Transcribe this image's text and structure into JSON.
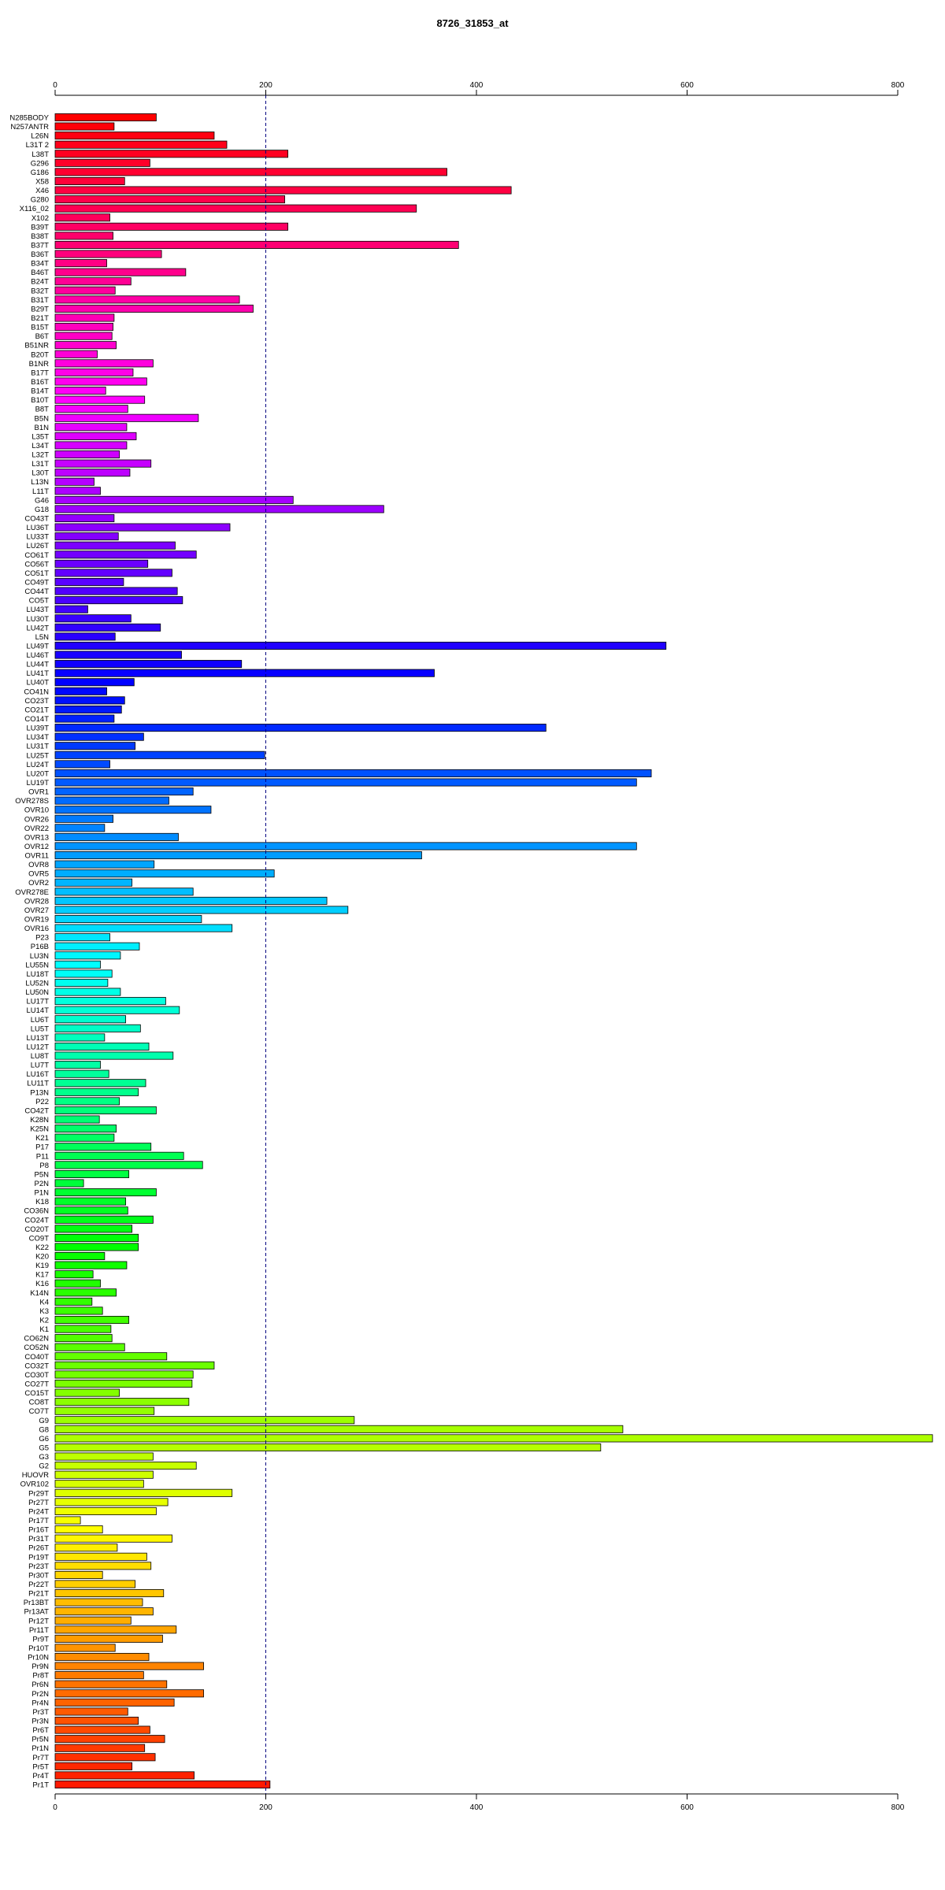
{
  "chart_data": {
    "type": "bar",
    "orientation": "horizontal",
    "title": "8726_31853_at",
    "xlabel": "",
    "ylabel": "",
    "xlim": [
      0,
      800
    ],
    "ticks": [
      "0",
      "200",
      "400",
      "600",
      "800"
    ],
    "reference_line": 200,
    "grid": false,
    "legend": "none",
    "categories": [
      "N285BODY",
      "N257ANTR",
      "L26N",
      "L31T 2",
      "L38T",
      "G296",
      "G186",
      "X58",
      "X46",
      "G280",
      "X116_02",
      "X102",
      "B39T",
      "B38T",
      "B37T",
      "B36T",
      "B34T",
      "B46T",
      "B24T",
      "B32T",
      "B31T",
      "B29T",
      "B21T",
      "B15T",
      "B6T",
      "B51NR",
      "B20T",
      "B1NR",
      "B17T",
      "B16T",
      "B14T",
      "B10T",
      "B8T",
      "B5N",
      "B1N",
      "L35T",
      "L34T",
      "L32T",
      "L31T",
      "L30T",
      "L13N",
      "L11T",
      "G46",
      "G18",
      "CO43T",
      "LU36T",
      "LU33T",
      "LU26T",
      "CO61T",
      "CO56T",
      "CO51T",
      "CO49T",
      "CO44T",
      "CO5T",
      "LU43T",
      "LU30T",
      "LU42T",
      "L5N",
      "LU49T",
      "LU46T",
      "LU44T",
      "LU41T",
      "LU40T",
      "CO41N",
      "CO23T",
      "CO21T",
      "CO14T",
      "LU39T",
      "LU34T",
      "LU31T",
      "LU25T",
      "LU24T",
      "LU20T",
      "LU19T",
      "OVR1",
      "OVR278S",
      "OVR10",
      "OVR26",
      "OVR22",
      "OVR13",
      "OVR12",
      "OVR11",
      "OVR8",
      "OVR5",
      "OVR2",
      "OVR278E",
      "OVR28",
      "OVR27",
      "OVR19",
      "OVR16",
      "P23",
      "P16B",
      "LU3N",
      "LU55N",
      "LU18T",
      "LU52N",
      "LU50N",
      "LU17T",
      "LU14T",
      "LU6T",
      "LU5T",
      "LU13T",
      "LU12T",
      "LU8T",
      "LU7T",
      "LU16T",
      "LU11T",
      "P13N",
      "P22",
      "CO42T",
      "K28N",
      "K25N",
      "K21",
      "P17",
      "P11",
      "P8",
      "P5N",
      "P2N",
      "P1N",
      "K18",
      "CO36N",
      "CO24T",
      "CO20T",
      "CO9T",
      "K22",
      "K20",
      "K19",
      "K17",
      "K16",
      "K14N",
      "K4",
      "K3",
      "K2",
      "K1",
      "CO62N",
      "CO52N",
      "CO40T",
      "CO32T",
      "CO30T",
      "CO27T",
      "CO15T",
      "CO8T",
      "CO7T",
      "G9",
      "G8",
      "G6",
      "G5",
      "G3",
      "G2",
      "HUOVR",
      "OVR102",
      "Pr29T",
      "Pr27T",
      "Pr24T",
      "Pr17T",
      "Pr16T",
      "Pr31T",
      "Pr26T",
      "Pr19T",
      "Pr23T",
      "Pr30T",
      "Pr22T",
      "Pr21T",
      "Pr13BT",
      "Pr13AT",
      "Pr12T",
      "Pr11T",
      "Pr9T",
      "Pr10T",
      "Pr10N",
      "Pr9N",
      "Pr8T",
      "Pr6N",
      "Pr2N",
      "Pr4N",
      "Pr3T",
      "Pr3N",
      "Pr6T",
      "Pr5N",
      "Pr1N",
      "Pr7T",
      "Pr5T",
      "Pr4T",
      "Pr1T"
    ],
    "values": [
      96,
      56,
      151,
      163,
      221,
      90,
      372,
      66,
      433,
      218,
      343,
      52,
      221,
      55,
      383,
      101,
      49,
      124,
      72,
      57,
      175,
      188,
      56,
      55,
      54,
      58,
      40,
      93,
      74,
      87,
      48,
      85,
      69,
      136,
      68,
      77,
      68,
      61,
      91,
      71,
      37,
      43,
      226,
      312,
      56,
      166,
      60,
      114,
      134,
      88,
      111,
      65,
      116,
      121,
      31,
      72,
      100,
      57,
      580,
      120,
      177,
      360,
      75,
      49,
      66,
      63,
      56,
      466,
      84,
      76,
      199,
      52,
      566,
      552,
      131,
      108,
      148,
      55,
      47,
      117,
      552,
      348,
      94,
      208,
      73,
      131,
      258,
      278,
      139,
      168,
      52,
      80,
      62,
      43,
      54,
      50,
      62,
      105,
      118,
      67,
      81,
      47,
      89,
      112,
      43,
      51,
      86,
      79,
      61,
      96,
      42,
      58,
      56,
      91,
      122,
      140,
      70,
      27,
      96,
      67,
      69,
      93,
      73,
      79,
      79,
      47,
      68,
      36,
      43,
      58,
      35,
      45,
      70,
      53,
      54,
      66,
      106,
      151,
      131,
      130,
      61,
      127,
      94,
      284,
      539,
      833,
      518,
      93,
      134,
      93,
      84,
      168,
      107,
      96,
      24,
      45,
      111,
      59,
      87,
      91,
      45,
      76,
      103,
      83,
      93,
      72,
      115,
      102,
      57,
      89,
      141,
      84,
      106,
      141,
      113,
      69,
      79,
      90,
      104,
      85,
      95,
      73,
      132,
      204
    ],
    "colors": [
      "#ff0000",
      "#ff0008",
      "#ff0010",
      "#ff0019",
      "#ff0021",
      "#ff0029",
      "#ff0031",
      "#ff003a",
      "#ff0042",
      "#ff004a",
      "#ff0052",
      "#ff005b",
      "#ff0063",
      "#ff006b",
      "#ff0073",
      "#ff007c",
      "#ff0084",
      "#ff008c",
      "#ff0094",
      "#ff009c",
      "#ff00a5",
      "#ff00ad",
      "#ff00b5",
      "#ff00bd",
      "#ff00c6",
      "#ff00ce",
      "#ff00d6",
      "#ff00de",
      "#ff00e7",
      "#ff00ef",
      "#ff00f7",
      "#ff00ff",
      "#f700ff",
      "#ef00ff",
      "#e700ff",
      "#de00ff",
      "#d600ff",
      "#ce00ff",
      "#c600ff",
      "#bd00ff",
      "#b500ff",
      "#ad00ff",
      "#a500ff",
      "#9c00ff",
      "#9400ff",
      "#8c00ff",
      "#8400ff",
      "#7b00ff",
      "#7300ff",
      "#6b00ff",
      "#6300ff",
      "#5a00ff",
      "#5200ff",
      "#4a00ff",
      "#4200ff",
      "#3900ff",
      "#3100ff",
      "#2900ff",
      "#2100ff",
      "#1900ff",
      "#1000ff",
      "#0800ff",
      "#0000ff",
      "#0008ff",
      "#0010ff",
      "#0019ff",
      "#0021ff",
      "#0029ff",
      "#0031ff",
      "#003aff",
      "#0042ff",
      "#004aff",
      "#0052ff",
      "#005aff",
      "#0063ff",
      "#006bff",
      "#0073ff",
      "#007bff",
      "#0084ff",
      "#008cff",
      "#0094ff",
      "#009cff",
      "#00a5ff",
      "#00adff",
      "#00b5ff",
      "#00bdff",
      "#00c6ff",
      "#00ceff",
      "#00d6ff",
      "#00deff",
      "#00e7ff",
      "#00efff",
      "#00f7ff",
      "#00ffff",
      "#00fff7",
      "#00ffef",
      "#00ffe7",
      "#00ffde",
      "#00ffd6",
      "#00ffce",
      "#00ffc6",
      "#00ffbd",
      "#00ffb5",
      "#00ffad",
      "#00ffa5",
      "#00ff9c",
      "#00ff94",
      "#00ff8c",
      "#00ff84",
      "#00ff7b",
      "#00ff73",
      "#00ff6b",
      "#00ff63",
      "#00ff5a",
      "#00ff52",
      "#00ff4a",
      "#00ff42",
      "#00ff3a",
      "#00ff31",
      "#00ff29",
      "#00ff21",
      "#00ff19",
      "#00ff10",
      "#00ff08",
      "#00ff00",
      "#08ff00",
      "#10ff00",
      "#19ff00",
      "#21ff00",
      "#29ff00",
      "#31ff00",
      "#3aff00",
      "#42ff00",
      "#4aff00",
      "#52ff00",
      "#5aff00",
      "#63ff00",
      "#6bff00",
      "#73ff00",
      "#7bff00",
      "#84ff00",
      "#8cff00",
      "#94ff00",
      "#9cff00",
      "#a5ff00",
      "#adff00",
      "#b5ff00",
      "#bdff00",
      "#c6ff00",
      "#ceff00",
      "#d6ff00",
      "#deff00",
      "#e7ff00",
      "#efff00",
      "#f7ff00",
      "#ffff00",
      "#fff700",
      "#ffef00",
      "#ffe700",
      "#ffde00",
      "#ffd600",
      "#ffce00",
      "#ffc600",
      "#ffbd00",
      "#ffb500",
      "#ffad00",
      "#ffa500",
      "#ff9c00",
      "#ff9400",
      "#ff8c00",
      "#ff8400",
      "#ff7b00",
      "#ff7300",
      "#ff6b00",
      "#ff6300",
      "#ff5a00",
      "#ff5200",
      "#ff4a00",
      "#ff4200",
      "#ff3a00",
      "#ff3100",
      "#ff2900",
      "#ff2100",
      "#ff1900",
      "#ff1000",
      "#ff0800",
      "#ff0000"
    ]
  }
}
